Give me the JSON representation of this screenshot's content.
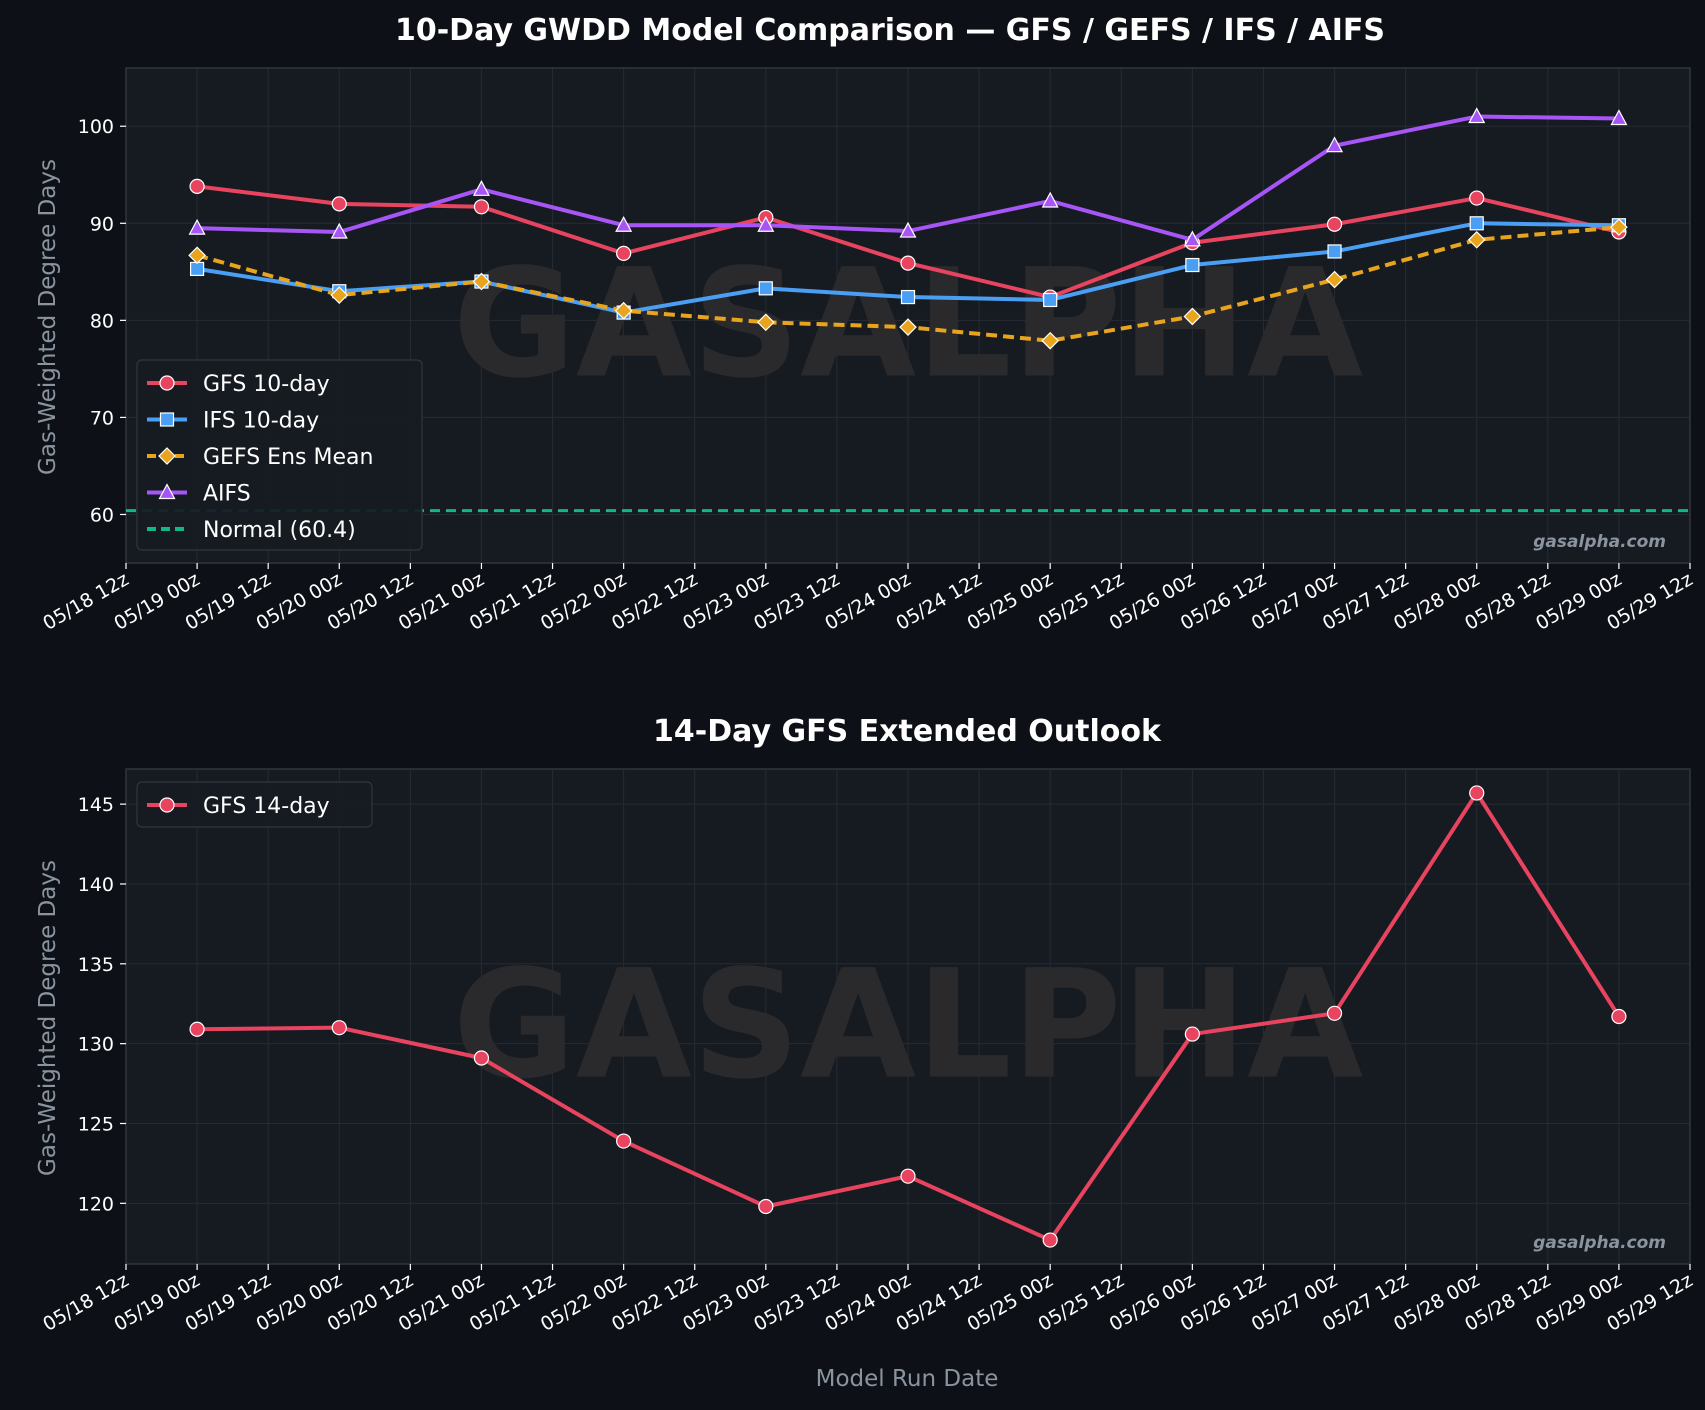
{
  "colors": {
    "background": "#0d1117",
    "panel": "#161b22",
    "frame": "#30363d",
    "grid": "#262b33",
    "text": "#ffffff",
    "muted": "#8b949e",
    "watermark": "#2a2a2c",
    "gfs": "#e8445f",
    "ifs": "#4a9ff5",
    "gefs": "#e8a41c",
    "aifs": "#a855f7",
    "normal": "#10b981"
  },
  "watermark": "GASALPHA",
  "credit": "gasalpha.com",
  "chart_data": [
    {
      "type": "line",
      "title": "10-Day GWDD Model Comparison — GFS / GEFS / IFS / AIFS",
      "xlabel": "",
      "ylabel": "Gas-Weighted Degree Days",
      "x_ticks": [
        "05/18 12z",
        "05/19 00z",
        "05/19 12z",
        "05/20 00z",
        "05/20 12z",
        "05/21 00z",
        "05/21 12z",
        "05/22 00z",
        "05/22 12z",
        "05/23 00z",
        "05/23 12z",
        "05/24 00z",
        "05/24 12z",
        "05/25 00z",
        "05/25 12z",
        "05/26 00z",
        "05/26 12z",
        "05/27 00z",
        "05/27 12z",
        "05/28 00z",
        "05/28 12z",
        "05/29 00z",
        "05/29 12z"
      ],
      "x": [
        "05/19 00z",
        "05/20 00z",
        "05/21 00z",
        "05/22 00z",
        "05/23 00z",
        "05/24 00z",
        "05/25 00z",
        "05/26 00z",
        "05/27 00z",
        "05/28 00z",
        "05/29 00z"
      ],
      "ylim": [
        55,
        106
      ],
      "y_ticks": [
        60,
        70,
        80,
        90,
        100
      ],
      "grid": true,
      "legend_position": "lower-left",
      "series": [
        {
          "name": "GFS 10-day",
          "color_key": "gfs",
          "marker": "circle",
          "dash": "solid",
          "values": [
            93.8,
            92.0,
            91.7,
            86.9,
            90.6,
            85.9,
            82.4,
            88.0,
            89.9,
            92.6,
            89.1
          ]
        },
        {
          "name": "IFS 10-day",
          "color_key": "ifs",
          "marker": "square",
          "dash": "solid",
          "values": [
            85.3,
            83.0,
            84.0,
            80.8,
            83.3,
            82.4,
            82.1,
            85.7,
            87.1,
            90.0,
            89.8
          ]
        },
        {
          "name": "GEFS Ens Mean",
          "color_key": "gefs",
          "marker": "diamond",
          "dash": "dashed",
          "values": [
            86.7,
            82.6,
            84.0,
            81.0,
            79.8,
            79.3,
            77.9,
            80.4,
            84.2,
            88.3,
            89.6
          ]
        },
        {
          "name": "AIFS",
          "color_key": "aifs",
          "marker": "triangle",
          "dash": "solid",
          "values": [
            89.5,
            89.1,
            93.5,
            89.8,
            89.8,
            89.2,
            92.3,
            88.3,
            98.0,
            101.0,
            100.8
          ]
        }
      ],
      "reference_line": {
        "name": "Normal (60.4)",
        "value": 60.4,
        "color_key": "normal"
      }
    },
    {
      "type": "line",
      "title": "14-Day GFS Extended Outlook",
      "xlabel": "Model Run Date",
      "ylabel": "Gas-Weighted Degree Days",
      "x_ticks": [
        "05/18 12z",
        "05/19 00z",
        "05/19 12z",
        "05/20 00z",
        "05/20 12z",
        "05/21 00z",
        "05/21 12z",
        "05/22 00z",
        "05/22 12z",
        "05/23 00z",
        "05/23 12z",
        "05/24 00z",
        "05/24 12z",
        "05/25 00z",
        "05/25 12z",
        "05/26 00z",
        "05/26 12z",
        "05/27 00z",
        "05/27 12z",
        "05/28 00z",
        "05/28 12z",
        "05/29 00z",
        "05/29 12z"
      ],
      "x": [
        "05/19 00z",
        "05/20 00z",
        "05/21 00z",
        "05/22 00z",
        "05/23 00z",
        "05/24 00z",
        "05/25 00z",
        "05/26 00z",
        "05/27 00z",
        "05/28 00z",
        "05/29 00z"
      ],
      "ylim": [
        116.2,
        147.2
      ],
      "y_ticks": [
        120,
        125,
        130,
        135,
        140,
        145
      ],
      "grid": true,
      "legend_position": "upper-left",
      "series": [
        {
          "name": "GFS 14-day",
          "color_key": "gfs",
          "marker": "circle",
          "dash": "solid",
          "values": [
            130.9,
            131.0,
            129.1,
            123.9,
            119.8,
            121.7,
            117.7,
            130.6,
            131.9,
            145.7,
            131.7
          ]
        }
      ]
    }
  ]
}
